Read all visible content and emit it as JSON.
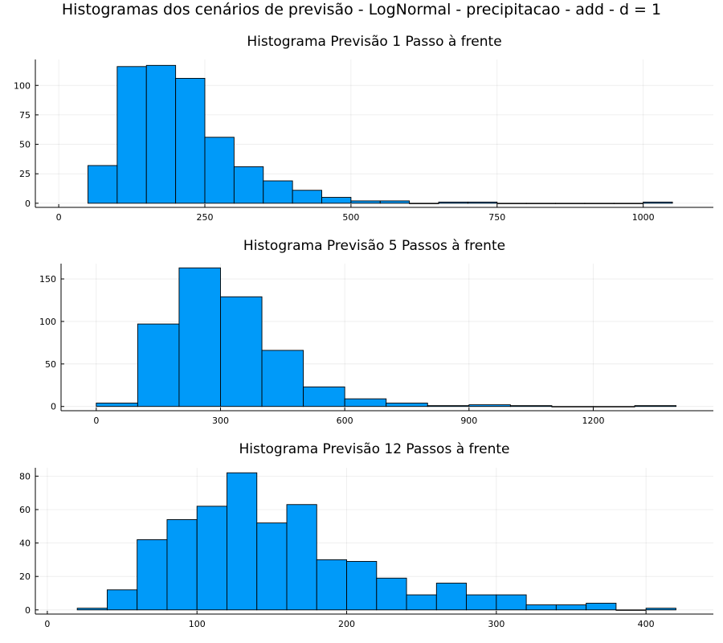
{
  "figure_title": "Histogramas dos cenários de previsão - LogNormal - precipitacao - add - d = 1",
  "chart_data": [
    {
      "type": "bar",
      "title": "Histograma Previsão 1 Passo à frente",
      "bin_edges": [
        50,
        100,
        150,
        200,
        250,
        300,
        350,
        400,
        450,
        500,
        550,
        600,
        650,
        700,
        750,
        800,
        850,
        900,
        950,
        1000,
        1050
      ],
      "counts": [
        32,
        116,
        117,
        106,
        56,
        31,
        19,
        11,
        5,
        2,
        2,
        0,
        1,
        1,
        0,
        0,
        0,
        0,
        0,
        1
      ],
      "xticks": [
        0,
        250,
        500,
        750,
        1000
      ],
      "yticks": [
        0,
        25,
        50,
        75,
        100
      ],
      "xlim": [
        -40,
        1120
      ],
      "ylim": [
        -3.5,
        122
      ],
      "grid": true,
      "legend": "none"
    },
    {
      "type": "bar",
      "title": "Histograma Previsão 5 Passos à frente",
      "bin_edges": [
        0,
        100,
        200,
        300,
        400,
        500,
        600,
        700,
        800,
        900,
        1000,
        1100,
        1200,
        1300,
        1400
      ],
      "counts": [
        4,
        97,
        163,
        129,
        66,
        23,
        9,
        4,
        1,
        2,
        1,
        0,
        0,
        1
      ],
      "xticks": [
        0,
        300,
        600,
        900,
        1200
      ],
      "yticks": [
        0,
        50,
        100,
        150
      ],
      "xlim": [
        -85,
        1490
      ],
      "ylim": [
        -5,
        168
      ],
      "grid": true,
      "legend": "none"
    },
    {
      "type": "bar",
      "title": "Histograma Previsão 12 Passos à frente",
      "bin_edges": [
        20,
        40,
        60,
        80,
        100,
        120,
        140,
        160,
        180,
        200,
        220,
        240,
        260,
        280,
        300,
        320,
        340,
        360,
        380,
        400,
        420
      ],
      "counts": [
        1,
        12,
        42,
        54,
        62,
        82,
        52,
        63,
        30,
        29,
        19,
        9,
        16,
        9,
        9,
        3,
        3,
        4,
        0,
        1
      ],
      "xticks": [
        0,
        100,
        200,
        300,
        400
      ],
      "yticks": [
        0,
        20,
        40,
        60,
        80
      ],
      "xlim": [
        -8,
        445
      ],
      "ylim": [
        -2.5,
        85
      ],
      "grid": true,
      "legend": "none"
    }
  ]
}
